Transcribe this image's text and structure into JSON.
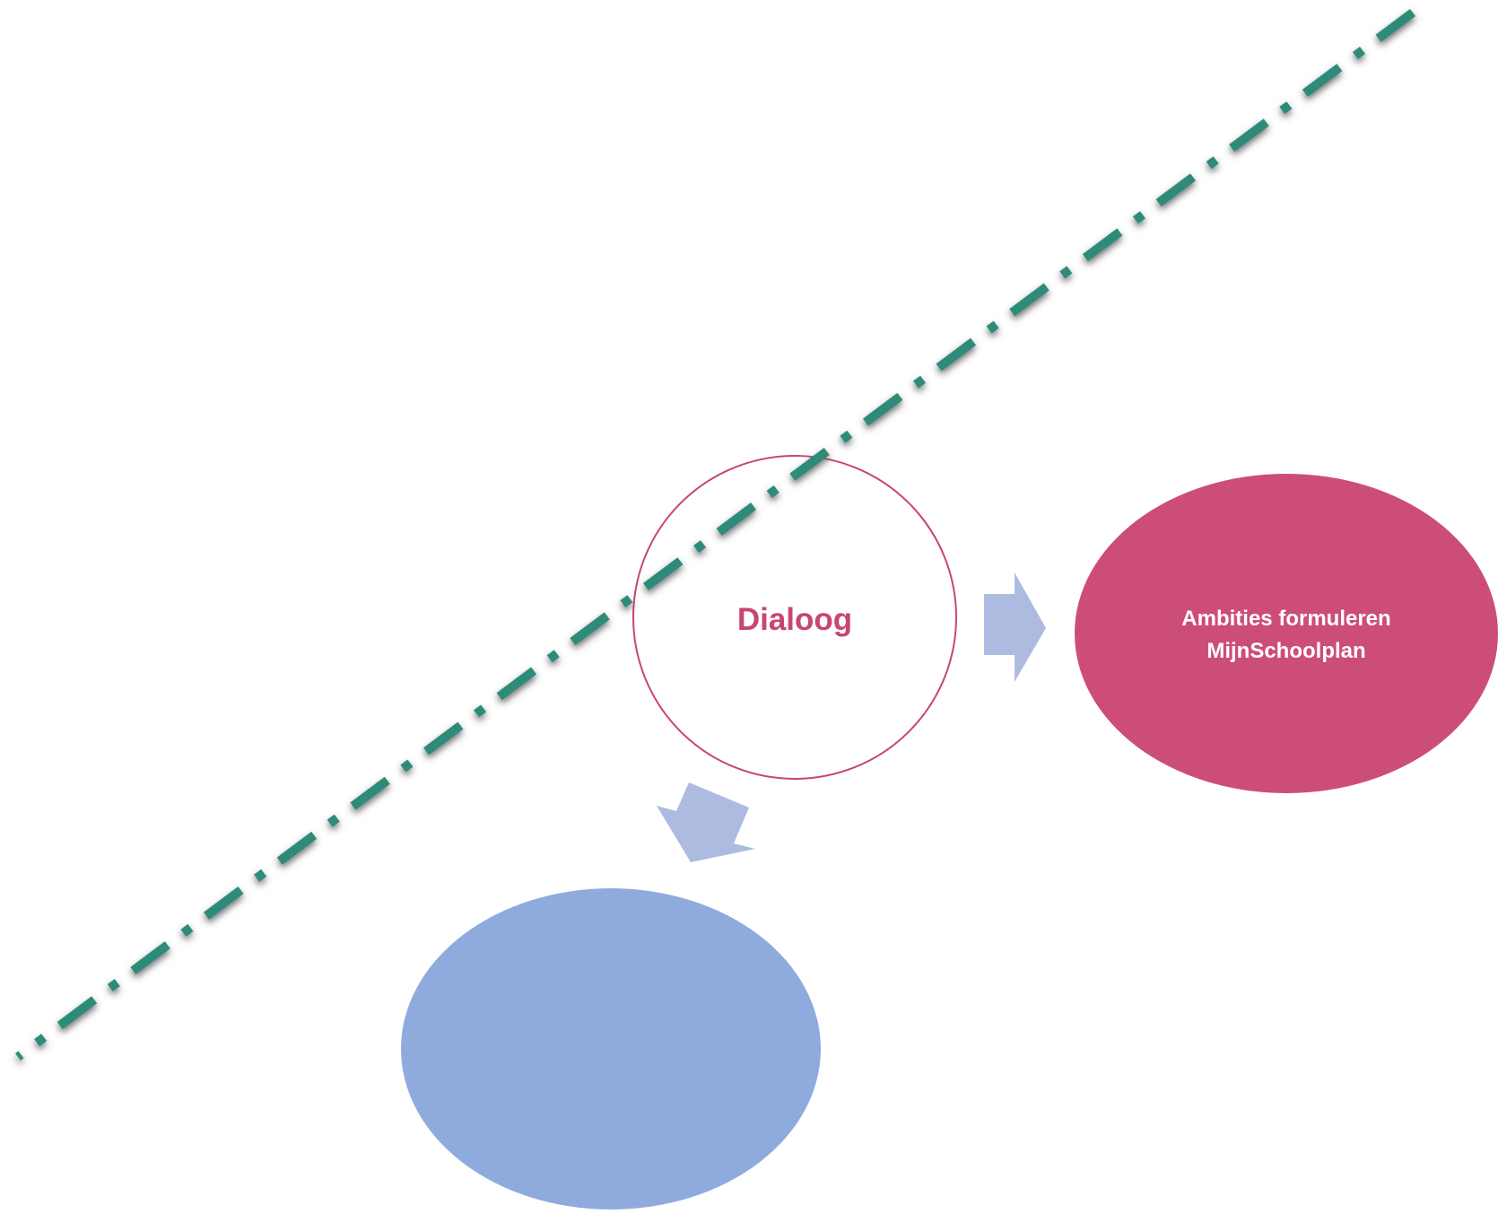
{
  "diagram": {
    "center_node": {
      "label": "Dialoog",
      "shape": "circle",
      "fill": "#ffffff",
      "stroke": "#c8466f",
      "text_color": "#c8466f"
    },
    "right_node": {
      "label_line1": "Ambities formuleren",
      "label_line2": "MijnSchoolplan",
      "shape": "ellipse",
      "fill": "#cd4d79",
      "text_color": "#ffffff"
    },
    "bottom_node": {
      "label": "",
      "shape": "ellipse",
      "fill": "#8fabdd"
    },
    "arrows": {
      "color": "#aebbe0",
      "directions": [
        "right",
        "down-left"
      ]
    },
    "dividing_line": {
      "style": "dash-dot",
      "color": "#2e8b7a",
      "shadow_color": "#555555"
    }
  }
}
